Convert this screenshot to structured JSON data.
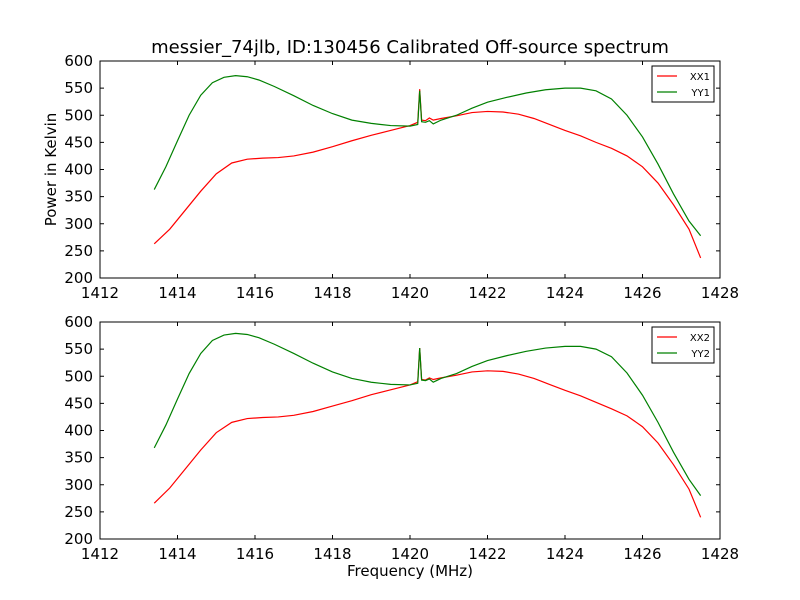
{
  "title": "messier_74jlb, ID:130456 Calibrated Off-source spectrum",
  "chart_data": [
    {
      "type": "line",
      "xlabel": "",
      "ylabel": "Power in Kelvin",
      "xlim": [
        1412,
        1428
      ],
      "ylim": [
        200,
        600
      ],
      "xticks": [
        1412,
        1414,
        1416,
        1418,
        1420,
        1422,
        1424,
        1426,
        1428
      ],
      "yticks": [
        200,
        250,
        300,
        350,
        400,
        450,
        500,
        550,
        600
      ],
      "legend_position": "top-right",
      "grid": false,
      "series": [
        {
          "name": "XX1",
          "color": "#ff0000",
          "points": [
            [
              1413.4,
              263
            ],
            [
              1413.8,
              290
            ],
            [
              1414.2,
              325
            ],
            [
              1414.6,
              360
            ],
            [
              1415.0,
              392
            ],
            [
              1415.4,
              412
            ],
            [
              1415.8,
              419
            ],
            [
              1416.2,
              421
            ],
            [
              1416.6,
              422
            ],
            [
              1417.0,
              425
            ],
            [
              1417.5,
              432
            ],
            [
              1418.0,
              442
            ],
            [
              1418.5,
              453
            ],
            [
              1419.0,
              463
            ],
            [
              1419.5,
              472
            ],
            [
              1420.0,
              481
            ],
            [
              1420.2,
              487
            ],
            [
              1420.25,
              548
            ],
            [
              1420.3,
              491
            ],
            [
              1420.4,
              490
            ],
            [
              1420.5,
              495
            ],
            [
              1420.6,
              491
            ],
            [
              1420.8,
              494
            ],
            [
              1421.2,
              499
            ],
            [
              1421.6,
              505
            ],
            [
              1422.0,
              507
            ],
            [
              1422.4,
              506
            ],
            [
              1422.8,
              502
            ],
            [
              1423.2,
              494
            ],
            [
              1423.6,
              483
            ],
            [
              1424.0,
              472
            ],
            [
              1424.4,
              462
            ],
            [
              1424.8,
              450
            ],
            [
              1425.2,
              439
            ],
            [
              1425.6,
              425
            ],
            [
              1426.0,
              405
            ],
            [
              1426.4,
              375
            ],
            [
              1426.8,
              335
            ],
            [
              1427.2,
              290
            ],
            [
              1427.5,
              237
            ]
          ]
        },
        {
          "name": "YY1",
          "color": "#008000",
          "points": [
            [
              1413.4,
              363
            ],
            [
              1413.7,
              405
            ],
            [
              1414.0,
              453
            ],
            [
              1414.3,
              500
            ],
            [
              1414.6,
              537
            ],
            [
              1414.9,
              560
            ],
            [
              1415.2,
              570
            ],
            [
              1415.5,
              573
            ],
            [
              1415.8,
              571
            ],
            [
              1416.1,
              565
            ],
            [
              1416.5,
              553
            ],
            [
              1417.0,
              536
            ],
            [
              1417.5,
              518
            ],
            [
              1418.0,
              503
            ],
            [
              1418.5,
              491
            ],
            [
              1419.0,
              485
            ],
            [
              1419.5,
              481
            ],
            [
              1420.0,
              480
            ],
            [
              1420.2,
              483
            ],
            [
              1420.25,
              545
            ],
            [
              1420.3,
              488
            ],
            [
              1420.4,
              487
            ],
            [
              1420.5,
              490
            ],
            [
              1420.6,
              484
            ],
            [
              1420.8,
              491
            ],
            [
              1421.2,
              500
            ],
            [
              1421.6,
              513
            ],
            [
              1422.0,
              524
            ],
            [
              1422.5,
              533
            ],
            [
              1423.0,
              541
            ],
            [
              1423.5,
              547
            ],
            [
              1424.0,
              550
            ],
            [
              1424.4,
              550
            ],
            [
              1424.8,
              545
            ],
            [
              1425.2,
              530
            ],
            [
              1425.6,
              500
            ],
            [
              1426.0,
              460
            ],
            [
              1426.4,
              410
            ],
            [
              1426.8,
              355
            ],
            [
              1427.2,
              305
            ],
            [
              1427.5,
              278
            ]
          ]
        }
      ]
    },
    {
      "type": "line",
      "xlabel": "Frequency (MHz)",
      "ylabel": "",
      "xlim": [
        1412,
        1428
      ],
      "ylim": [
        200,
        600
      ],
      "xticks": [
        1412,
        1414,
        1416,
        1418,
        1420,
        1422,
        1424,
        1426,
        1428
      ],
      "yticks": [
        200,
        250,
        300,
        350,
        400,
        450,
        500,
        550,
        600
      ],
      "legend_position": "top-right",
      "grid": false,
      "series": [
        {
          "name": "XX2",
          "color": "#ff0000",
          "points": [
            [
              1413.4,
              266
            ],
            [
              1413.8,
              294
            ],
            [
              1414.2,
              329
            ],
            [
              1414.6,
              364
            ],
            [
              1415.0,
              396
            ],
            [
              1415.4,
              415
            ],
            [
              1415.8,
              422
            ],
            [
              1416.2,
              424
            ],
            [
              1416.6,
              425
            ],
            [
              1417.0,
              428
            ],
            [
              1417.5,
              435
            ],
            [
              1418.0,
              445
            ],
            [
              1418.5,
              455
            ],
            [
              1419.0,
              466
            ],
            [
              1419.5,
              475
            ],
            [
              1420.0,
              484
            ],
            [
              1420.2,
              490
            ],
            [
              1420.25,
              552
            ],
            [
              1420.3,
              494
            ],
            [
              1420.4,
              493
            ],
            [
              1420.5,
              497
            ],
            [
              1420.6,
              494
            ],
            [
              1420.8,
              497
            ],
            [
              1421.2,
              502
            ],
            [
              1421.6,
              508
            ],
            [
              1422.0,
              510
            ],
            [
              1422.4,
              509
            ],
            [
              1422.8,
              504
            ],
            [
              1423.2,
              496
            ],
            [
              1423.6,
              485
            ],
            [
              1424.0,
              474
            ],
            [
              1424.4,
              464
            ],
            [
              1424.8,
              452
            ],
            [
              1425.2,
              440
            ],
            [
              1425.6,
              427
            ],
            [
              1426.0,
              407
            ],
            [
              1426.4,
              377
            ],
            [
              1426.8,
              337
            ],
            [
              1427.2,
              292
            ],
            [
              1427.5,
              240
            ]
          ]
        },
        {
          "name": "YY2",
          "color": "#008000",
          "points": [
            [
              1413.4,
              368
            ],
            [
              1413.7,
              410
            ],
            [
              1414.0,
              458
            ],
            [
              1414.3,
              505
            ],
            [
              1414.6,
              542
            ],
            [
              1414.9,
              566
            ],
            [
              1415.2,
              576
            ],
            [
              1415.5,
              579
            ],
            [
              1415.8,
              577
            ],
            [
              1416.1,
              571
            ],
            [
              1416.5,
              559
            ],
            [
              1417.0,
              542
            ],
            [
              1417.5,
              524
            ],
            [
              1418.0,
              508
            ],
            [
              1418.5,
              496
            ],
            [
              1419.0,
              489
            ],
            [
              1419.5,
              485
            ],
            [
              1420.0,
              484
            ],
            [
              1420.2,
              487
            ],
            [
              1420.25,
              552
            ],
            [
              1420.3,
              493
            ],
            [
              1420.4,
              492
            ],
            [
              1420.5,
              495
            ],
            [
              1420.6,
              489
            ],
            [
              1420.8,
              496
            ],
            [
              1421.2,
              505
            ],
            [
              1421.6,
              518
            ],
            [
              1422.0,
              529
            ],
            [
              1422.5,
              538
            ],
            [
              1423.0,
              546
            ],
            [
              1423.5,
              552
            ],
            [
              1424.0,
              555
            ],
            [
              1424.4,
              555
            ],
            [
              1424.8,
              550
            ],
            [
              1425.2,
              536
            ],
            [
              1425.6,
              506
            ],
            [
              1426.0,
              465
            ],
            [
              1426.4,
              415
            ],
            [
              1426.8,
              360
            ],
            [
              1427.2,
              310
            ],
            [
              1427.5,
              280
            ]
          ]
        }
      ]
    }
  ]
}
